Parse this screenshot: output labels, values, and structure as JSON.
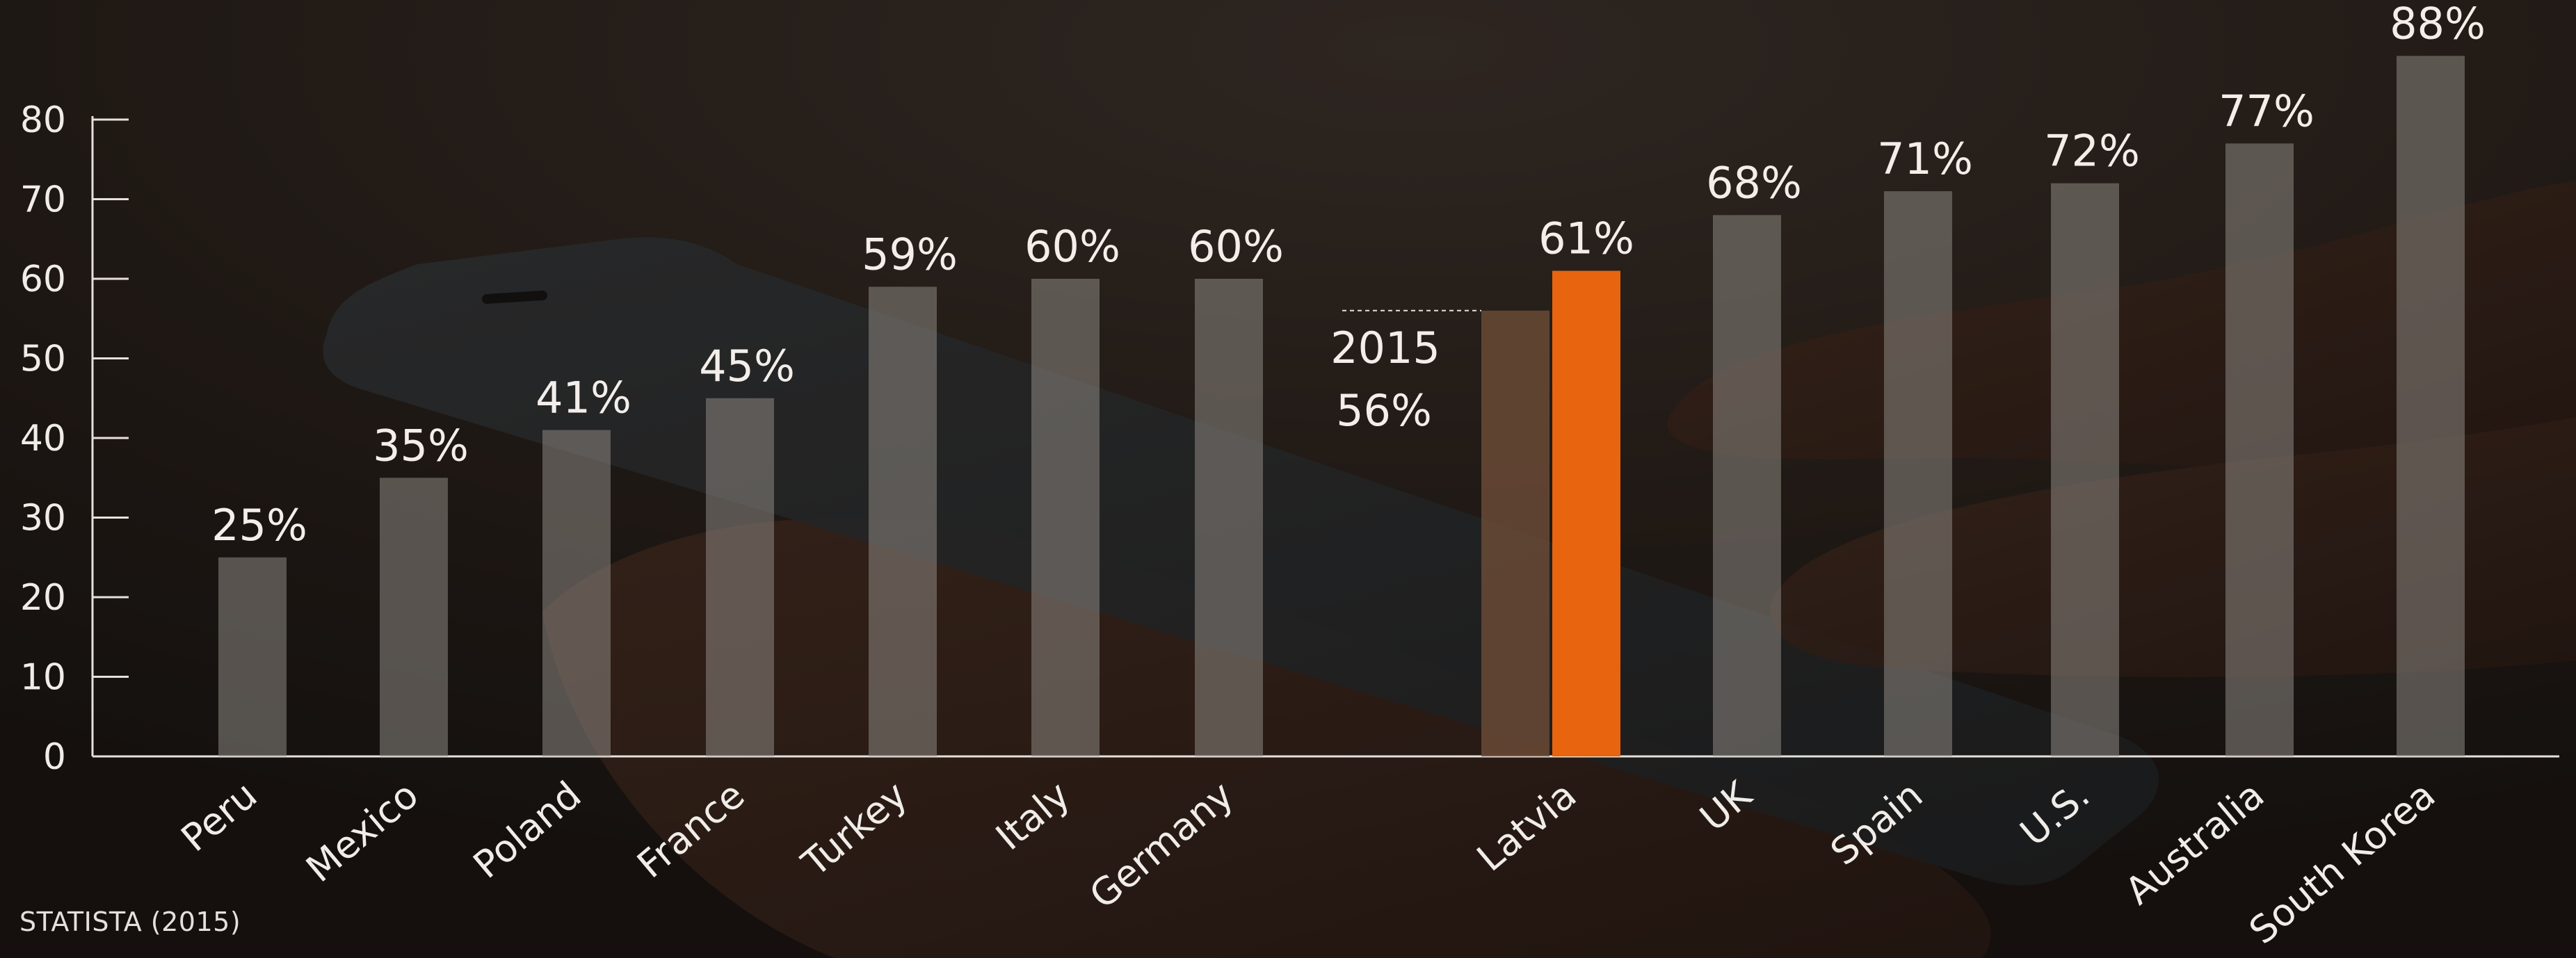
{
  "chart_data": {
    "type": "bar",
    "title": "",
    "xlabel": "",
    "ylabel": "",
    "ylim": [
      0,
      80
    ],
    "yticks": [
      0,
      10,
      20,
      30,
      40,
      50,
      60,
      70,
      80
    ],
    "grid": false,
    "categories": [
      "Peru",
      "Mexico",
      "Poland",
      "France",
      "Turkey",
      "Italy",
      "Germany",
      "Latvia",
      "UK",
      "Spain",
      "U.S.",
      "Australia",
      "South Korea"
    ],
    "values": [
      25,
      35,
      41,
      45,
      59,
      60,
      60,
      61,
      68,
      71,
      72,
      77,
      88
    ],
    "value_labels": [
      "25%",
      "35%",
      "41%",
      "45%",
      "59%",
      "60%",
      "60%",
      "61%",
      "68%",
      "71%",
      "72%",
      "77%",
      "88%"
    ],
    "highlight": {
      "category": "Latvia",
      "color": "#e8640f",
      "previous": {
        "year_label": "2015",
        "value": 56,
        "value_label": "56%"
      }
    },
    "bar_color": "#8c8682",
    "previous_bar_color": "#6a4a36"
  },
  "source": "STATISTA (2015)"
}
